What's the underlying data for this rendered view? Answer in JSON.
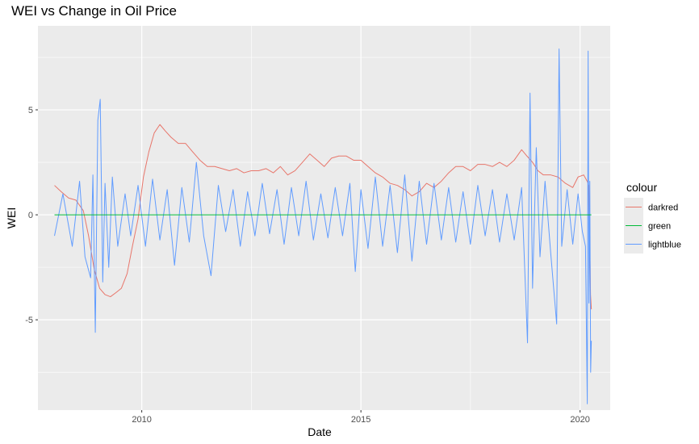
{
  "chart_data": {
    "type": "line",
    "title": "WEI vs Change in Oil Price",
    "xlabel": "Date",
    "ylabel": "WEI",
    "x_range": [
      "2007-08-20",
      "2020-09-08"
    ],
    "ylim": [
      -9.3,
      9.0
    ],
    "x_ticks": [
      {
        "date": "2010-01-01",
        "label": "2010"
      },
      {
        "date": "2015-01-01",
        "label": "2015"
      },
      {
        "date": "2020-01-01",
        "label": "2020"
      }
    ],
    "y_ticks": [
      {
        "value": -5,
        "label": "-5"
      },
      {
        "value": 0,
        "label": "0"
      },
      {
        "value": 5,
        "label": "5"
      }
    ],
    "grid": true,
    "legend": {
      "title": "colour",
      "position": "right"
    },
    "series": [
      {
        "name": "darkred",
        "color": "#e8766b",
        "points": [
          [
            "2008-01-05",
            1.4
          ],
          [
            "2008-03-01",
            1.1
          ],
          [
            "2008-05-01",
            0.8
          ],
          [
            "2008-07-01",
            0.7
          ],
          [
            "2008-09-01",
            0.2
          ],
          [
            "2008-10-15",
            -1.0
          ],
          [
            "2008-12-01",
            -2.6
          ],
          [
            "2009-01-15",
            -3.5
          ],
          [
            "2009-03-01",
            -3.8
          ],
          [
            "2009-04-15",
            -3.9
          ],
          [
            "2009-06-01",
            -3.7
          ],
          [
            "2009-07-15",
            -3.5
          ],
          [
            "2009-09-01",
            -2.8
          ],
          [
            "2009-10-15",
            -1.5
          ],
          [
            "2009-12-01",
            -0.2
          ],
          [
            "2010-01-15",
            1.8
          ],
          [
            "2010-03-01",
            3.0
          ],
          [
            "2010-04-15",
            3.9
          ],
          [
            "2010-06-01",
            4.3
          ],
          [
            "2010-07-15",
            4.0
          ],
          [
            "2010-09-01",
            3.7
          ],
          [
            "2010-11-01",
            3.4
          ],
          [
            "2011-01-01",
            3.4
          ],
          [
            "2011-03-01",
            3.0
          ],
          [
            "2011-05-01",
            2.6
          ],
          [
            "2011-07-01",
            2.3
          ],
          [
            "2011-09-01",
            2.3
          ],
          [
            "2011-11-01",
            2.2
          ],
          [
            "2012-01-01",
            2.1
          ],
          [
            "2012-03-01",
            2.2
          ],
          [
            "2012-05-01",
            2.0
          ],
          [
            "2012-07-01",
            2.1
          ],
          [
            "2012-09-01",
            2.1
          ],
          [
            "2012-11-01",
            2.2
          ],
          [
            "2013-01-01",
            2.0
          ],
          [
            "2013-03-01",
            2.3
          ],
          [
            "2013-05-01",
            1.9
          ],
          [
            "2013-07-01",
            2.1
          ],
          [
            "2013-09-01",
            2.5
          ],
          [
            "2013-11-01",
            2.9
          ],
          [
            "2014-01-01",
            2.6
          ],
          [
            "2014-03-01",
            2.3
          ],
          [
            "2014-05-01",
            2.7
          ],
          [
            "2014-07-01",
            2.8
          ],
          [
            "2014-09-01",
            2.8
          ],
          [
            "2014-11-01",
            2.6
          ],
          [
            "2015-01-01",
            2.6
          ],
          [
            "2015-03-01",
            2.3
          ],
          [
            "2015-05-01",
            2.0
          ],
          [
            "2015-07-01",
            1.8
          ],
          [
            "2015-09-01",
            1.5
          ],
          [
            "2015-11-01",
            1.4
          ],
          [
            "2016-01-01",
            1.2
          ],
          [
            "2016-03-01",
            0.9
          ],
          [
            "2016-05-01",
            1.1
          ],
          [
            "2016-07-01",
            1.5
          ],
          [
            "2016-09-01",
            1.3
          ],
          [
            "2016-11-01",
            1.6
          ],
          [
            "2017-01-01",
            2.0
          ],
          [
            "2017-03-01",
            2.3
          ],
          [
            "2017-05-01",
            2.3
          ],
          [
            "2017-07-01",
            2.1
          ],
          [
            "2017-09-01",
            2.4
          ],
          [
            "2017-11-01",
            2.4
          ],
          [
            "2018-01-01",
            2.3
          ],
          [
            "2018-03-01",
            2.5
          ],
          [
            "2018-05-01",
            2.3
          ],
          [
            "2018-07-01",
            2.6
          ],
          [
            "2018-09-01",
            3.1
          ],
          [
            "2018-10-15",
            2.8
          ],
          [
            "2018-12-01",
            2.5
          ],
          [
            "2019-01-15",
            2.1
          ],
          [
            "2019-03-01",
            1.9
          ],
          [
            "2019-05-01",
            1.9
          ],
          [
            "2019-07-01",
            1.8
          ],
          [
            "2019-09-01",
            1.5
          ],
          [
            "2019-11-01",
            1.3
          ],
          [
            "2019-12-15",
            1.8
          ],
          [
            "2020-01-31",
            1.9
          ],
          [
            "2020-02-29",
            1.6
          ],
          [
            "2020-03-14",
            1.4
          ],
          [
            "2020-03-21",
            -1.0
          ],
          [
            "2020-03-28",
            -3.8
          ],
          [
            "2020-04-04",
            -4.5
          ]
        ]
      },
      {
        "name": "green",
        "color": "#00ba38",
        "points": [
          [
            "2008-01-05",
            0
          ],
          [
            "2020-04-04",
            0
          ]
        ]
      },
      {
        "name": "lightblue",
        "color": "#619cff",
        "points": [
          [
            "2008-01-05",
            -1.0
          ],
          [
            "2008-03-15",
            1.0
          ],
          [
            "2008-06-01",
            -1.5
          ],
          [
            "2008-08-01",
            1.6
          ],
          [
            "2008-09-15",
            -2.0
          ],
          [
            "2008-11-01",
            -3.0
          ],
          [
            "2008-11-20",
            1.9
          ],
          [
            "2008-12-10",
            -5.6
          ],
          [
            "2008-12-31",
            4.5
          ],
          [
            "2009-01-20",
            5.5
          ],
          [
            "2009-02-10",
            -3.2
          ],
          [
            "2009-03-01",
            1.5
          ],
          [
            "2009-04-01",
            -2.5
          ],
          [
            "2009-05-01",
            1.8
          ],
          [
            "2009-06-15",
            -1.5
          ],
          [
            "2009-08-15",
            1.0
          ],
          [
            "2009-10-01",
            -1.0
          ],
          [
            "2009-12-01",
            1.4
          ],
          [
            "2010-02-01",
            -1.5
          ],
          [
            "2010-04-01",
            1.7
          ],
          [
            "2010-06-01",
            -1.2
          ],
          [
            "2010-08-01",
            1.2
          ],
          [
            "2010-10-01",
            -2.4
          ],
          [
            "2010-12-01",
            1.3
          ],
          [
            "2011-02-01",
            -1.3
          ],
          [
            "2011-04-01",
            2.5
          ],
          [
            "2011-06-01",
            -1.0
          ],
          [
            "2011-08-01",
            -2.9
          ],
          [
            "2011-10-01",
            1.4
          ],
          [
            "2011-12-01",
            -0.8
          ],
          [
            "2012-02-01",
            1.2
          ],
          [
            "2012-04-01",
            -1.5
          ],
          [
            "2012-06-01",
            1.1
          ],
          [
            "2012-08-01",
            -1.0
          ],
          [
            "2012-10-01",
            1.5
          ],
          [
            "2012-12-01",
            -0.9
          ],
          [
            "2013-02-01",
            1.2
          ],
          [
            "2013-04-01",
            -1.4
          ],
          [
            "2013-06-01",
            1.3
          ],
          [
            "2013-08-01",
            -1.0
          ],
          [
            "2013-10-01",
            1.6
          ],
          [
            "2013-12-01",
            -1.2
          ],
          [
            "2014-02-01",
            1.0
          ],
          [
            "2014-04-01",
            -1.1
          ],
          [
            "2014-06-01",
            1.3
          ],
          [
            "2014-08-01",
            -1.0
          ],
          [
            "2014-10-01",
            1.5
          ],
          [
            "2014-11-15",
            -2.7
          ],
          [
            "2015-01-01",
            1.2
          ],
          [
            "2015-03-01",
            -1.6
          ],
          [
            "2015-05-01",
            1.8
          ],
          [
            "2015-07-01",
            -1.5
          ],
          [
            "2015-09-01",
            1.4
          ],
          [
            "2015-11-01",
            -1.8
          ],
          [
            "2016-01-01",
            1.9
          ],
          [
            "2016-03-01",
            -2.2
          ],
          [
            "2016-05-01",
            1.6
          ],
          [
            "2016-07-01",
            -1.4
          ],
          [
            "2016-09-01",
            1.5
          ],
          [
            "2016-11-01",
            -1.2
          ],
          [
            "2017-01-01",
            1.3
          ],
          [
            "2017-03-01",
            -1.3
          ],
          [
            "2017-05-01",
            1.1
          ],
          [
            "2017-07-01",
            -1.4
          ],
          [
            "2017-09-01",
            1.4
          ],
          [
            "2017-11-01",
            -1.0
          ],
          [
            "2018-01-01",
            1.2
          ],
          [
            "2018-03-01",
            -1.3
          ],
          [
            "2018-05-01",
            1.0
          ],
          [
            "2018-07-01",
            -1.2
          ],
          [
            "2018-09-01",
            1.3
          ],
          [
            "2018-10-20",
            -6.1
          ],
          [
            "2018-11-10",
            5.8
          ],
          [
            "2018-12-01",
            -3.5
          ],
          [
            "2019-01-01",
            3.2
          ],
          [
            "2019-02-01",
            -2.0
          ],
          [
            "2019-03-15",
            1.6
          ],
          [
            "2019-05-01",
            -1.8
          ],
          [
            "2019-06-20",
            -5.2
          ],
          [
            "2019-07-10",
            7.9
          ],
          [
            "2019-08-01",
            -1.5
          ],
          [
            "2019-09-15",
            1.2
          ],
          [
            "2019-11-01",
            -1.4
          ],
          [
            "2019-12-15",
            1.0
          ],
          [
            "2020-01-20",
            -0.8
          ],
          [
            "2020-02-15",
            -1.5
          ],
          [
            "2020-03-01",
            -9.0
          ],
          [
            "2020-03-08",
            7.8
          ],
          [
            "2020-03-15",
            -4.2
          ],
          [
            "2020-03-22",
            1.6
          ],
          [
            "2020-03-29",
            -7.5
          ],
          [
            "2020-04-04",
            -6.0
          ]
        ]
      }
    ]
  }
}
